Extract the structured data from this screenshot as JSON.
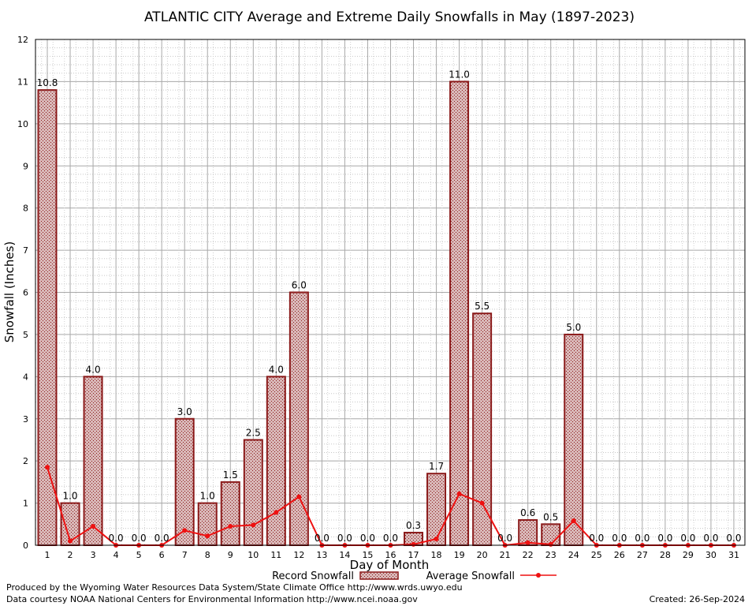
{
  "chart_data": {
    "type": "bar",
    "title": "ATLANTIC CITY Average and Extreme Daily Snowfalls in May (1897-2023)",
    "xlabel": "Day of Month",
    "ylabel": "Snowfall (Inches)",
    "ylim": [
      0,
      12
    ],
    "yticks": [
      "0",
      "1",
      "2",
      "3",
      "4",
      "5",
      "6",
      "7",
      "8",
      "9",
      "10",
      "11",
      "12"
    ],
    "categories": [
      "1",
      "2",
      "3",
      "4",
      "5",
      "6",
      "7",
      "8",
      "9",
      "10",
      "11",
      "12",
      "13",
      "14",
      "15",
      "16",
      "17",
      "18",
      "19",
      "20",
      "21",
      "22",
      "23",
      "24",
      "25",
      "26",
      "27",
      "28",
      "29",
      "30",
      "31"
    ],
    "grid": true,
    "legend_position": "bottom",
    "series": [
      {
        "name": "Record Snowfall",
        "kind": "bar",
        "color": "#8b1a1a",
        "values": [
          10.8,
          1.0,
          4.0,
          0.0,
          0.0,
          0.0,
          3.0,
          1.0,
          1.5,
          2.5,
          4.0,
          6.0,
          0.0,
          0.0,
          0.0,
          0.0,
          0.3,
          1.7,
          11.0,
          5.5,
          0.0,
          0.6,
          0.5,
          5.0,
          0.0,
          0.0,
          0.0,
          0.0,
          0.0,
          0.0,
          0.0
        ],
        "labels": [
          "10.8",
          "1.0",
          "4.0",
          "0.0",
          "0.0",
          "0.0",
          "3.0",
          "1.0",
          "1.5",
          "2.5",
          "4.0",
          "6.0",
          "0.0",
          "0.0",
          "0.0",
          "0.0",
          "0.3",
          "1.7",
          "11.0",
          "5.5",
          "0.0",
          "0.6",
          "0.5",
          "5.0",
          "0.0",
          "0.0",
          "0.0",
          "0.0",
          "0.0",
          "0.0",
          "0.0"
        ]
      },
      {
        "name": "Average Snowfall",
        "kind": "line",
        "color": "#ee1111",
        "values": [
          1.85,
          0.1,
          0.45,
          0.0,
          0.0,
          0.0,
          0.35,
          0.22,
          0.45,
          0.48,
          0.78,
          1.15,
          0.0,
          0.0,
          0.0,
          0.0,
          0.02,
          0.15,
          1.22,
          1.0,
          0.0,
          0.06,
          0.02,
          0.58,
          0.0,
          0.0,
          0.0,
          0.0,
          0.0,
          0.0,
          0.0
        ]
      }
    ]
  },
  "footer": {
    "produced_by": "Produced by the Wyoming Water Resources Data System/State Climate Office http://www.wrds.uwyo.edu",
    "courtesy": "Data courtesy NOAA National Centers for Environmental Information http://www.ncei.noaa.gov",
    "created": "Created:  26-Sep-2024"
  }
}
